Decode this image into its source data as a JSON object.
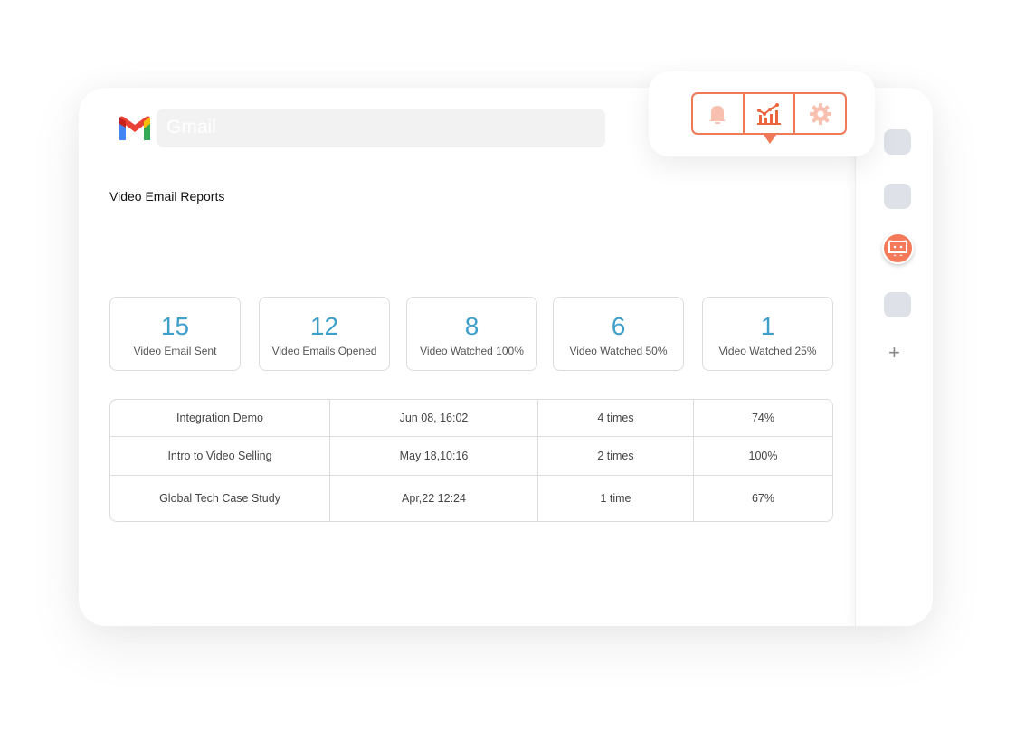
{
  "search": {
    "placeholder": "Gmail"
  },
  "title": "Video Email Reports",
  "stats": [
    {
      "value": "15",
      "label": "Video Email Sent"
    },
    {
      "value": "12",
      "label": "Video Emails Opened"
    },
    {
      "value": "8",
      "label": "Video Watched 100%"
    },
    {
      "value": "6",
      "label": "Video Watched 50%"
    },
    {
      "value": "1",
      "label": "Video Watched 25%"
    }
  ],
  "rows": [
    [
      "Integration Demo",
      "Jun 08, 16:02",
      "4 times",
      "74%"
    ],
    [
      "Intro to Video Selling",
      "May 18,10:16",
      "2 times",
      "100%"
    ],
    [
      "Global Tech Case Study",
      "Apr,22 12:24",
      "1 time",
      "67%"
    ]
  ],
  "toolbar": {
    "icons": [
      "bell-icon",
      "analytics-icon",
      "gear-icon"
    ],
    "active": "analytics-icon"
  },
  "colors": {
    "accent": "#f07a58",
    "number": "#3f9fcb"
  }
}
